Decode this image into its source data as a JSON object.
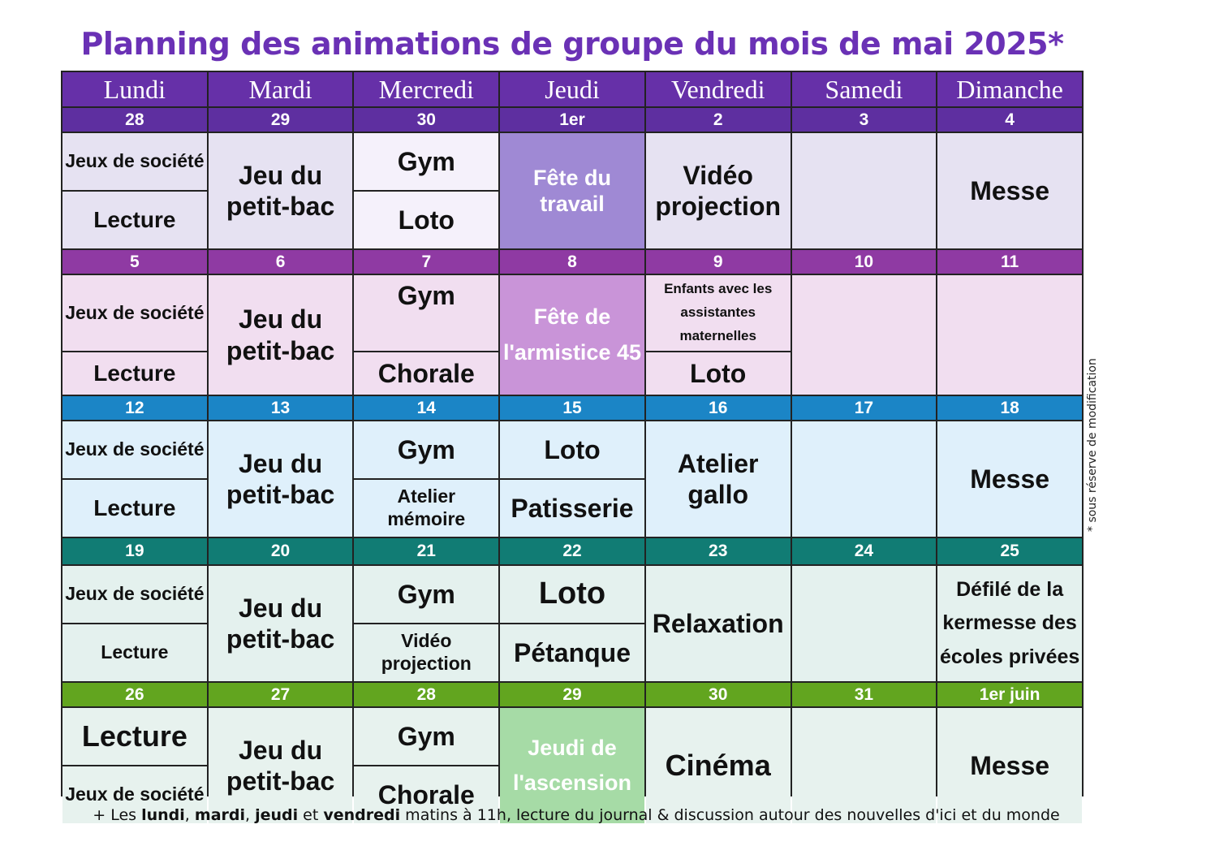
{
  "title": "Planning des animations de groupe du mois de mai 2025*",
  "side_note": "* sous réserve de modification",
  "footer": {
    "p1": "+ Les ",
    "b1": "lundi",
    "p2": ", ",
    "b2": "mardi",
    "p3": ", ",
    "b3": "jeudi",
    "p4": " et ",
    "b4": "vendredi",
    "p5": " matins à 11h, lecture du journal & discussion autour des nouvelles d'ici et du monde"
  },
  "days": [
    "Lundi",
    "Mardi",
    "Mercredi",
    "Jeudi",
    "Vendredi",
    "Samedi",
    "Dimanche"
  ],
  "colors": {
    "week1_header": "#5e2fa0",
    "week1_bg": "#e6e2f2",
    "holiday1": "#9f89d4",
    "week2_header": "#8f3aa3",
    "week2_bg": "#f1def0",
    "holiday2": "#c994d8",
    "week3_header": "#1b85c6",
    "week3_bg": "#dff0fb",
    "week4_header": "#117c74",
    "week4_bg": "#e4f1ee",
    "week5_header": "#62a51f",
    "week5_bg": "#e7f2ee",
    "holiday5": "#a6dba6"
  },
  "weeks": [
    {
      "dates": [
        "28",
        "29",
        "30",
        "1er",
        "2",
        "3",
        "4"
      ],
      "lun_a": "Jeux de société",
      "lun_b": "Lecture",
      "mar": "Jeu du petit-bac",
      "mer_a": "Gym",
      "mer_b": "Loto",
      "jeu": "Fête du travail",
      "ven": "Vidéo projection",
      "sam": "",
      "dim": "Messe"
    },
    {
      "dates": [
        "5",
        "6",
        "7",
        "8",
        "9",
        "10",
        "11"
      ],
      "lun_a": "Jeux de société",
      "lun_b": "Lecture",
      "mar": "Jeu du petit-bac",
      "mer_a": "Gym",
      "mer_b": "Chorale",
      "jeu": "Fête de l'armistice 45",
      "ven_a": "Enfants avec les assistantes maternelles",
      "ven_b": "Loto",
      "sam": "",
      "dim": ""
    },
    {
      "dates": [
        "12",
        "13",
        "14",
        "15",
        "16",
        "17",
        "18"
      ],
      "lun_a": "Jeux de société",
      "lun_b": "Lecture",
      "mar": "Jeu du petit-bac",
      "mer_a": "Gym",
      "mer_b": "Atelier mémoire",
      "jeu_a": "Loto",
      "jeu_b": "Patisserie",
      "ven": "Atelier gallo",
      "sam": "",
      "dim": "Messe"
    },
    {
      "dates": [
        "19",
        "20",
        "21",
        "22",
        "23",
        "24",
        "25"
      ],
      "lun_a": "Jeux de société",
      "lun_b": "Lecture",
      "mar": "Jeu du petit-bac",
      "mer_a": "Gym",
      "mer_b": "Vidéo projection",
      "jeu_a": "Loto",
      "jeu_b": "Pétanque",
      "ven": "Relaxation",
      "sam": "",
      "dim": "Défilé de la kermesse des écoles privées"
    },
    {
      "dates": [
        "26",
        "27",
        "28",
        "29",
        "30",
        "31",
        "1er juin"
      ],
      "lun_a": "Lecture",
      "lun_b": "Jeux de société",
      "mar": "Jeu du petit-bac",
      "mer_a": "Gym",
      "mer_b": "Chorale",
      "jeu": "Jeudi de l'ascension",
      "ven": "Cinéma",
      "sam": "",
      "dim": "Messe"
    }
  ]
}
